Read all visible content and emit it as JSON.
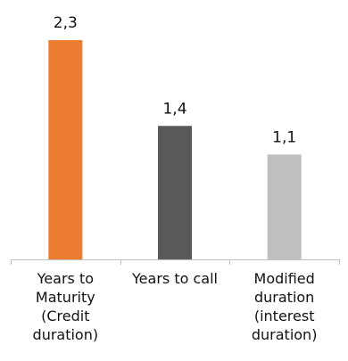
{
  "chart_data": {
    "type": "bar",
    "categories": [
      "Years to\nMaturity\n(Credit\nduration)",
      "Years to call",
      "Modified\nduration\n(interest\nduration)"
    ],
    "values": [
      2.3,
      1.4,
      1.1
    ],
    "value_labels": [
      "2,3",
      "1,4",
      "1,1"
    ],
    "colors": [
      "#ED7D31",
      "#595959",
      "#BFBFBF"
    ],
    "axis_color": "#BFBFBF",
    "ylim": [
      0,
      2.3
    ],
    "grid": false,
    "legend": "none",
    "title": "",
    "xlabel": "",
    "ylabel": ""
  }
}
